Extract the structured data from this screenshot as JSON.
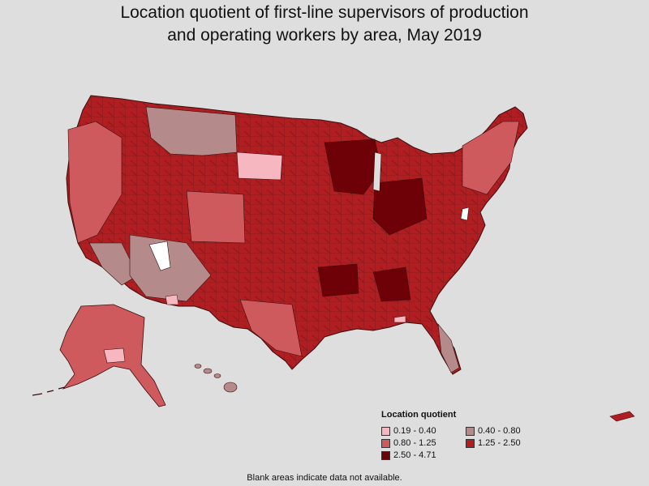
{
  "title_line1": "Location quotient of first-line supervisors of production",
  "title_line2": "and operating workers by area, May 2019",
  "legend": {
    "title": "Location quotient",
    "items": [
      {
        "label": "0.19 - 0.40",
        "color": "#f7b7c1"
      },
      {
        "label": "0.40 - 0.80",
        "color": "#b48a8a"
      },
      {
        "label": "0.80 - 1.25",
        "color": "#cf5a5e"
      },
      {
        "label": "1.25 - 2.50",
        "color": "#b01e22"
      },
      {
        "label": "2.50 - 4.71",
        "color": "#6e0008"
      }
    ]
  },
  "footnote": "Blank areas indicate data not available.",
  "colors": {
    "background": "#dedede",
    "border": "#4a1010",
    "no_data": "#ffffff"
  }
}
